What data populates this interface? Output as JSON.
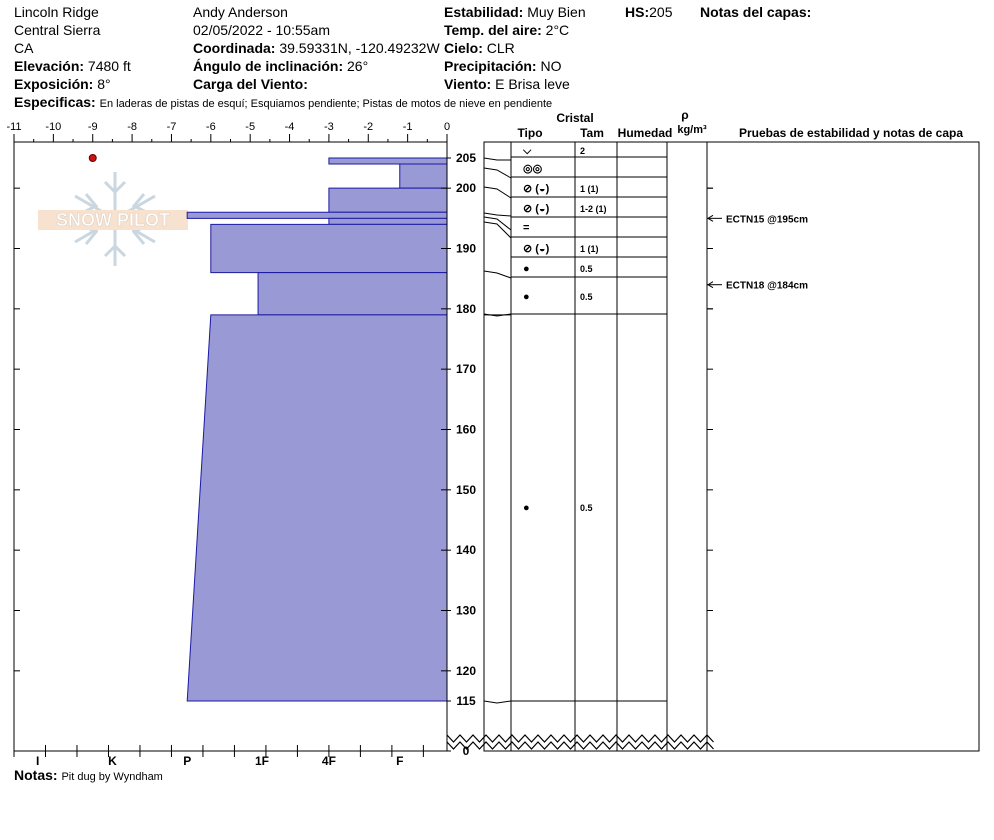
{
  "site": {
    "location": "Lincoln Ridge",
    "range": "Central Sierra",
    "state": "CA",
    "elevation_label": "Elevación:",
    "elevation": "7480 ft",
    "aspect_label": "Exposición:",
    "aspect": "8°",
    "specifics_label": "Especificas:",
    "specifics": "En laderas de pistas de esquí; Esquiamos pendiente; Pistas de motos de nieve en pendiente"
  },
  "observer": {
    "name": "Andy Anderson",
    "datetime": "02/05/2022 - 10:55am",
    "coord_label": "Coordinada:",
    "coord": "39.59331N, -120.49232W",
    "slope_label": "Ángulo de inclinación:",
    "slope": "26°",
    "wind_load_label": "Carga del Viento:",
    "wind_load": ""
  },
  "conditions": {
    "stability_label": "Estabilidad:",
    "stability": "Muy Bien",
    "hs_label": "HS:",
    "hs": "205",
    "air_temp_label": "Temp. del aire:",
    "air_temp": "2°C",
    "sky_label": "Cielo:",
    "sky": "CLR",
    "precip_label": "Precipitación:",
    "precip": "NO",
    "wind_label": "Viento:",
    "wind": "E Brisa leve",
    "layer_notes_label": "Notas del capas:"
  },
  "notes": {
    "label": "Notas:",
    "text": "Pit dug by Wyndham"
  },
  "logo": {
    "text": "SNOW PILOT"
  },
  "columns": {
    "crystal": "Cristal",
    "type": "Tipo",
    "size": "Tam",
    "moisture": "Humedad",
    "rho": "ρ",
    "density_unit": "kg/m³",
    "tests": "Pruebas de estabilidad y notas de capa"
  },
  "chart_data": {
    "type": "bar",
    "title": "",
    "temp_axis": {
      "ticks": [
        -11,
        -10,
        -9,
        -8,
        -7,
        -6,
        -5,
        -4,
        -3,
        -2,
        -1,
        0
      ],
      "range": [
        -11,
        0
      ]
    },
    "hardness_axis": {
      "labels": [
        "I",
        "K",
        "P",
        "1F",
        "4F",
        "F"
      ],
      "label_values": [
        -10.4,
        -8.5,
        -6.6,
        -4.7,
        -3.0,
        -1.2
      ],
      "minor_ticks": [
        -11,
        -10.2,
        -9.4,
        -8.6,
        -7.8,
        -7.0,
        -6.2,
        -5.4,
        -4.6,
        -3.8,
        -3.0,
        -2.2,
        -1.4,
        -0.6
      ]
    },
    "depth_axis": {
      "range": [
        115,
        205
      ],
      "labels": [
        205,
        200,
        190,
        180,
        170,
        160,
        150,
        140,
        130,
        120,
        115,
        0
      ],
      "ticks": [
        200,
        190,
        180,
        170,
        160,
        150,
        140,
        130,
        120
      ]
    },
    "temperature_points": [
      {
        "depth": 205,
        "temp": -9
      }
    ],
    "hardness_profile": [
      {
        "top": 205,
        "bottom": 204,
        "hardness_left": -3.0,
        "hardness_right_bottom": -3.0
      },
      {
        "top": 204,
        "bottom": 200,
        "hardness_left": -1.2,
        "hardness_right_bottom": -1.2
      },
      {
        "top": 200,
        "bottom": 196,
        "hardness_left": -3.0,
        "hardness_right_bottom": -3.0
      },
      {
        "top": 196,
        "bottom": 195,
        "hardness_left": -6.6,
        "hardness_right_bottom": -6.6
      },
      {
        "top": 195,
        "bottom": 194,
        "hardness_left": -3.0,
        "hardness_right_bottom": -3.0
      },
      {
        "top": 194,
        "bottom": 186,
        "hardness_left": -6.0,
        "hardness_right_bottom": -6.0
      },
      {
        "top": 186,
        "bottom": 179,
        "hardness_left": -4.8,
        "hardness_right_bottom": -4.8
      },
      {
        "top": 179,
        "bottom": 115,
        "hardness_left": -6.0,
        "hardness_right_bottom": -6.6
      }
    ],
    "layers": [
      {
        "depth_label": "205",
        "type": "⌵",
        "size": "2"
      },
      {
        "depth_label": "",
        "type": "◎◎",
        "size": ""
      },
      {
        "depth_label": "200",
        "type": "⊘ (◒)",
        "size": "1 (1)"
      },
      {
        "depth_label": "",
        "type": "⊘ (◒)",
        "size": "1-2 (1)"
      },
      {
        "depth_label": "",
        "type": "=",
        "size": ""
      },
      {
        "depth_label": "190",
        "type": "⊘ (◒)",
        "size": "1 (1)"
      },
      {
        "depth_label": "",
        "type": "●",
        "size": "0.5"
      },
      {
        "depth_label": "",
        "type": "●",
        "size": "0.5"
      },
      {
        "depth_label": "180",
        "type": "●",
        "size": "0.5"
      }
    ],
    "tests": [
      {
        "label": "ECTN15 @195cm",
        "depth": 195
      },
      {
        "label": "ECTN18 @184cm",
        "depth": 184
      }
    ]
  }
}
